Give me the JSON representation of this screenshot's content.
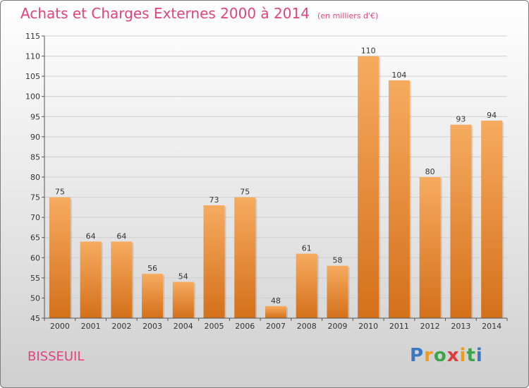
{
  "header": {
    "title": "Achats et Charges Externes 2000 à 2014",
    "unit": "(en milliers d'€)"
  },
  "footer": {
    "commune": "BISSEUIL"
  },
  "logo": {
    "letters": [
      "P",
      "r",
      "o",
      "x",
      "i",
      "t",
      "i"
    ],
    "colors": [
      "#3a78c3",
      "#f39a1c",
      "#3ea34a",
      "#e23a3a",
      "#f39a1c",
      "#3ea34a",
      "#3a78c3"
    ]
  },
  "colors": {
    "bar_light": "#f5a85a",
    "bar_dark": "#d9741a",
    "grid": "#cfcfcf",
    "axis": "#555555",
    "accent": "#e0447b"
  },
  "chart_data": {
    "type": "bar",
    "title": "Achats et Charges Externes 2000 à 2014",
    "subtitle": "(en milliers d'€)",
    "categories": [
      "2000",
      "2001",
      "2002",
      "2003",
      "2004",
      "2005",
      "2006",
      "2007",
      "2008",
      "2009",
      "2010",
      "2011",
      "2012",
      "2013",
      "2014"
    ],
    "values": [
      75,
      64,
      64,
      56,
      54,
      73,
      75,
      48,
      61,
      58,
      110,
      104,
      80,
      93,
      94
    ],
    "ylim": [
      45,
      115
    ],
    "yticks": [
      45,
      50,
      55,
      60,
      65,
      70,
      75,
      80,
      85,
      90,
      95,
      100,
      105,
      110,
      115
    ],
    "grid": true
  }
}
